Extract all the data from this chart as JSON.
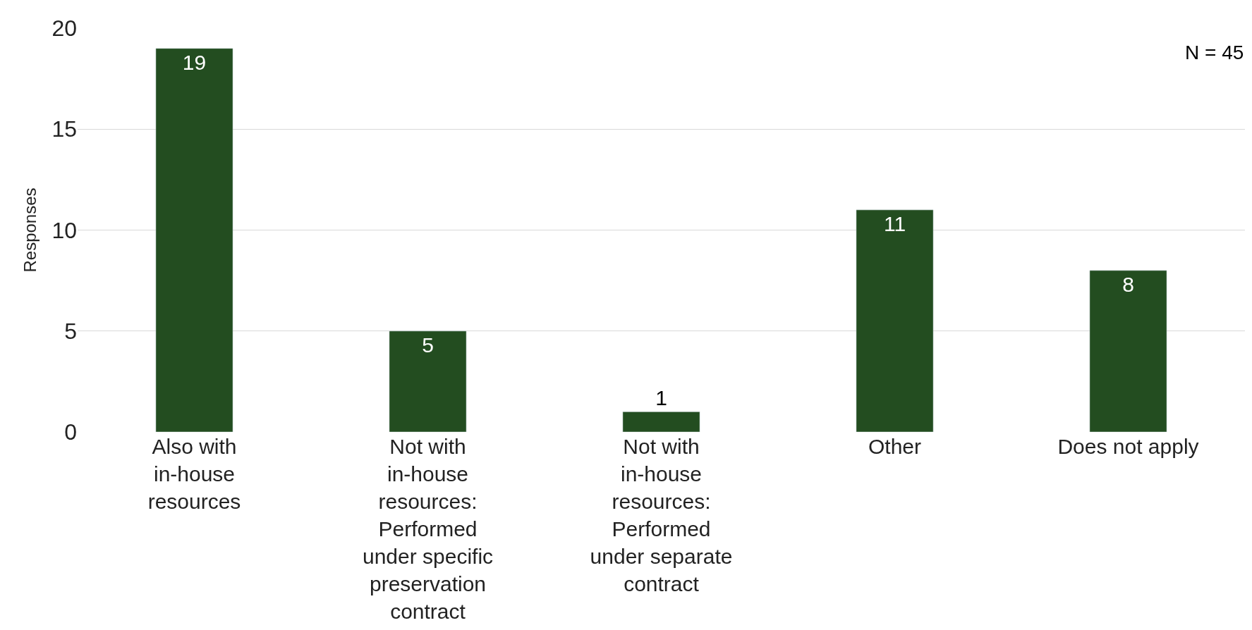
{
  "chart_data": {
    "type": "bar",
    "categories": [
      "Also with in-house resources",
      "Not with in-house resources: Performed under specific preservation contract",
      "Not with in-house resources: Performed under separate contract",
      "Other",
      "Does not apply"
    ],
    "values": [
      19,
      5,
      1,
      11,
      8
    ],
    "color": "#234d20",
    "ylabel": "Responses",
    "ylim": [
      0,
      20
    ],
    "yticks": [
      0,
      5,
      10,
      15,
      20
    ],
    "grid": "y",
    "legend": false,
    "data_labels": true,
    "annotations": [
      "N = 45"
    ]
  }
}
